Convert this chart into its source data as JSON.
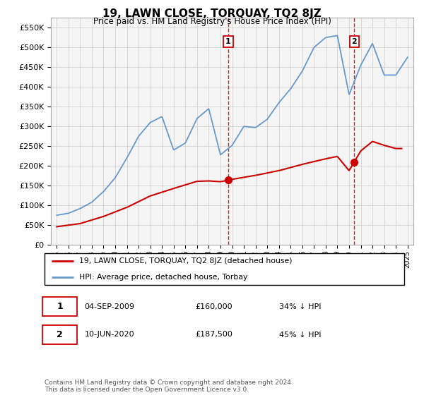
{
  "title": "19, LAWN CLOSE, TORQUAY, TQ2 8JZ",
  "subtitle": "Price paid vs. HM Land Registry's House Price Index (HPI)",
  "hpi_label": "HPI: Average price, detached house, Torbay",
  "price_label": "19, LAWN CLOSE, TORQUAY, TQ2 8JZ (detached house)",
  "footnote": "Contains HM Land Registry data © Crown copyright and database right 2024.\nThis data is licensed under the Open Government Licence v3.0.",
  "transactions": [
    {
      "label": "1",
      "date": "04-SEP-2009",
      "price": 160000,
      "pct": "34% ↓ HPI",
      "x": 2009.67
    },
    {
      "label": "2",
      "date": "10-JUN-2020",
      "price": 187500,
      "pct": "45% ↓ HPI",
      "x": 2020.44
    }
  ],
  "hpi_color": "#6699cc",
  "price_color": "#cc0000",
  "vline_color": "#cc0000",
  "ylim": [
    0,
    575000
  ],
  "xlim_start": 1994.5,
  "xlim_end": 2025.5,
  "yticks": [
    0,
    50000,
    100000,
    150000,
    200000,
    250000,
    300000,
    350000,
    400000,
    450000,
    500000,
    550000
  ],
  "xticks": [
    1995,
    1996,
    1997,
    1998,
    1999,
    2000,
    2001,
    2002,
    2003,
    2004,
    2005,
    2006,
    2007,
    2008,
    2009,
    2010,
    2011,
    2012,
    2013,
    2014,
    2015,
    2016,
    2017,
    2018,
    2019,
    2020,
    2021,
    2022,
    2023,
    2024,
    2025
  ],
  "hpi_knots_x": [
    1995,
    1996,
    1997,
    1998,
    1999,
    2000,
    2001,
    2002,
    2003,
    2004,
    2005,
    2006,
    2007,
    2008,
    2009,
    2010,
    2011,
    2012,
    2013,
    2014,
    2015,
    2016,
    2017,
    2018,
    2019,
    2020,
    2021,
    2022,
    2023,
    2024,
    2025
  ],
  "hpi_knots_y": [
    75000,
    80000,
    92000,
    108000,
    135000,
    170000,
    220000,
    275000,
    310000,
    325000,
    240000,
    258000,
    320000,
    345000,
    228000,
    252000,
    300000,
    297000,
    318000,
    360000,
    395000,
    440000,
    500000,
    525000,
    530000,
    380000,
    455000,
    510000,
    430000,
    430000,
    475000
  ],
  "price_knots_x": [
    1995,
    1997,
    1999,
    2001,
    2003,
    2005,
    2006,
    2007,
    2008,
    2009,
    2010,
    2012,
    2014,
    2016,
    2018,
    2019,
    2020,
    2021,
    2022,
    2023,
    2024
  ],
  "price_knots_y": [
    46000,
    54000,
    72000,
    95000,
    124000,
    143000,
    152000,
    161000,
    162000,
    160000,
    166000,
    176000,
    188000,
    204000,
    218000,
    224000,
    188000,
    238000,
    262000,
    252000,
    244000
  ]
}
